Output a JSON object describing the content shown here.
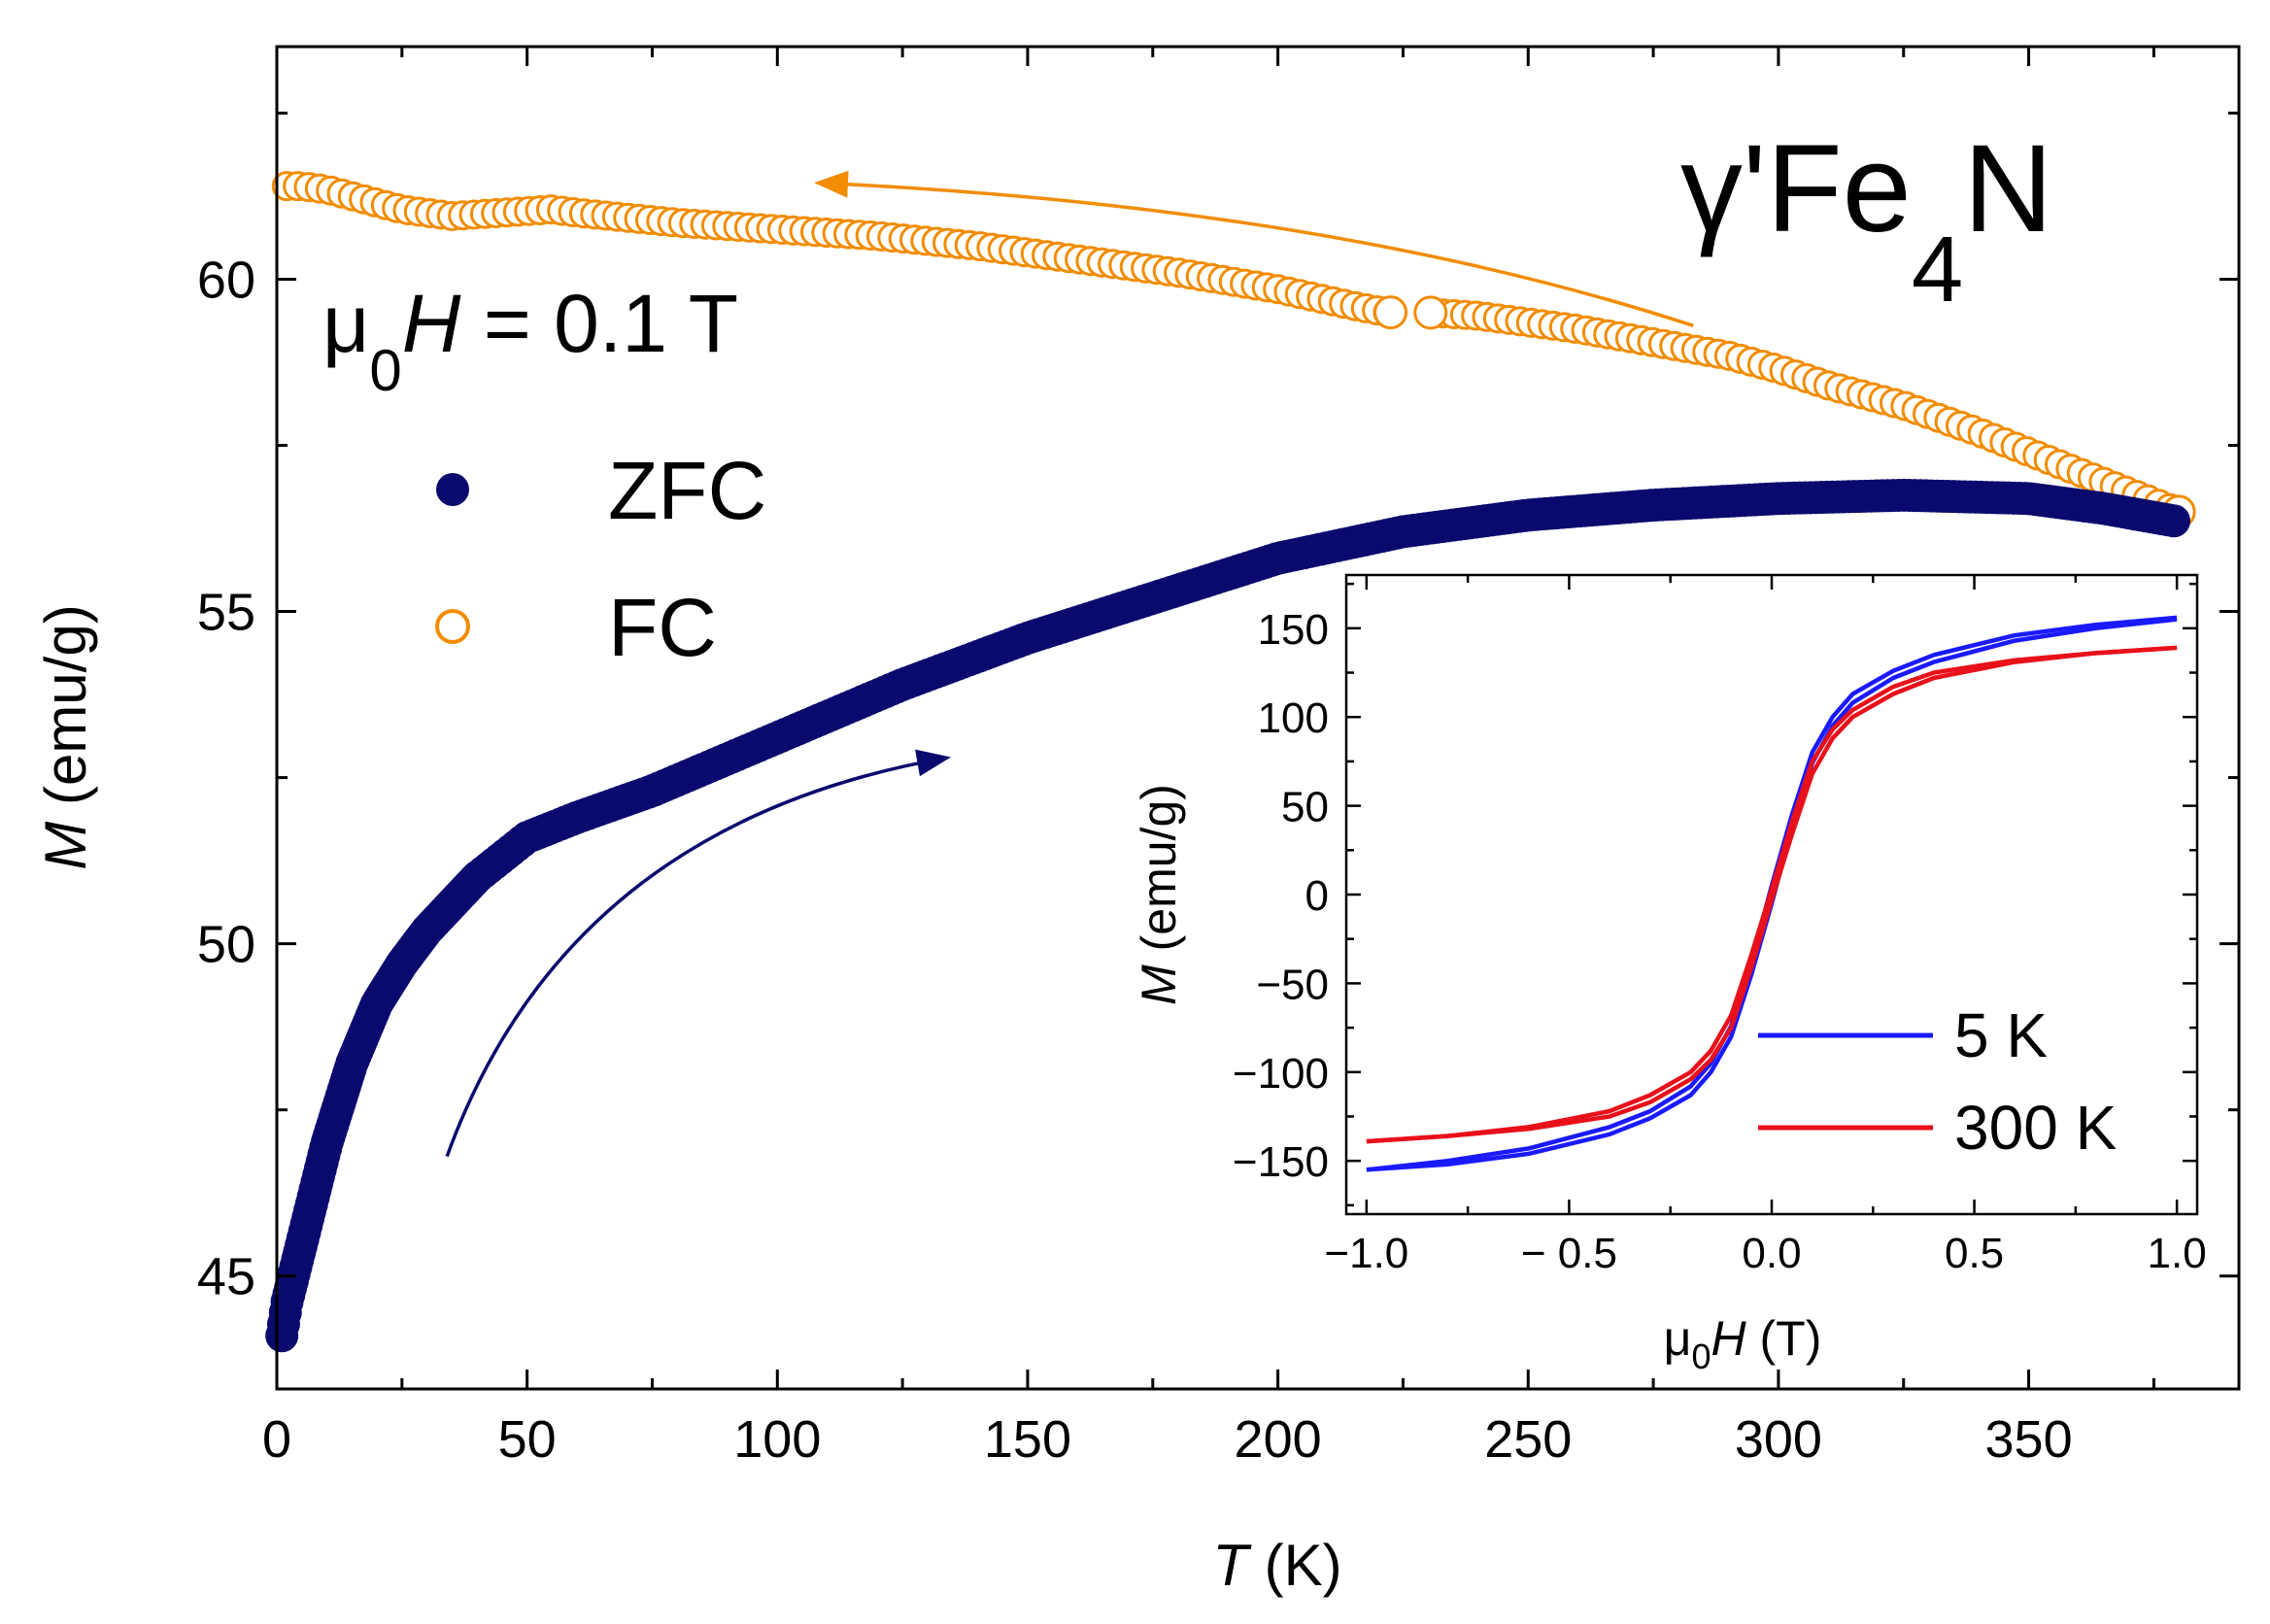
{
  "colors": {
    "zfc": "#0a0a6e",
    "fc": "#f28c00",
    "inset_5k": "#1a1aff",
    "inset_300k": "#e8101a"
  },
  "labels": {
    "title_gamma": "γ'Fe",
    "title_sub": "4",
    "title_n": "N",
    "field_mu": "μ",
    "field_sub": "0",
    "field_h": "H",
    "field_val": " = 0.1 T",
    "ylabel_m": "M",
    "ylabel_unit": " (emu/g)",
    "xlabel_t": "T",
    "xlabel_unit": " (K)",
    "inset_ylabel_m": "M",
    "inset_ylabel_unit": " (emu/g)",
    "inset_xlabel_mu": "μ",
    "inset_xlabel_sub": "0",
    "inset_xlabel_h": "H",
    "inset_xlabel_unit": " (T)"
  },
  "chart_data": [
    {
      "type": "scatter",
      "title": "γ'Fe4N",
      "annotation": "μ0H = 0.1 T",
      "xlabel": "T (K)",
      "ylabel": "M (emu/g)",
      "xlim": [
        0,
        392
      ],
      "ylim": [
        43.3,
        63.5
      ],
      "xticks": [
        "0",
        "50",
        "100",
        "150",
        "200",
        "250",
        "300",
        "350"
      ],
      "yticks": [
        "45",
        "50",
        "55",
        "60"
      ],
      "legend_position": "upper-left",
      "series": [
        {
          "name": "ZFC",
          "marker": "filled-circle",
          "x": [
            1,
            2,
            5,
            10,
            15,
            20,
            25,
            30,
            40,
            50,
            60,
            75,
            100,
            125,
            150,
            175,
            200,
            225,
            250,
            275,
            300,
            325,
            350,
            365,
            380
          ],
          "y": [
            44.1,
            44.6,
            45.5,
            47.0,
            48.2,
            49.1,
            49.7,
            50.2,
            51.0,
            51.6,
            51.9,
            52.3,
            53.1,
            53.9,
            54.6,
            55.2,
            55.8,
            56.2,
            56.45,
            56.6,
            56.7,
            56.75,
            56.7,
            56.55,
            56.35
          ]
        },
        {
          "name": "FC",
          "marker": "open-circle",
          "x": [
            380,
            370,
            360,
            350,
            340,
            325,
            310,
            300,
            290,
            275,
            260,
            250,
            240,
            230,
            222,
            215,
            200,
            180,
            160,
            140,
            120,
            100,
            80,
            60,
            55,
            45,
            35,
            25,
            15,
            10,
            5,
            2
          ],
          "y": [
            56.5,
            56.8,
            57.1,
            57.4,
            57.7,
            58.1,
            58.4,
            58.65,
            58.85,
            59.05,
            59.25,
            59.35,
            59.45,
            59.5,
            59.5,
            59.6,
            59.85,
            60.1,
            60.3,
            60.5,
            60.65,
            60.75,
            60.85,
            61.0,
            61.05,
            61.0,
            60.95,
            61.05,
            61.25,
            61.35,
            61.4,
            61.4
          ]
        }
      ]
    },
    {
      "type": "line",
      "title": "inset",
      "xlabel": "μ0H (T)",
      "ylabel": "M (emu/g)",
      "xlim": [
        -1.05,
        1.05
      ],
      "ylim": [
        -180,
        180
      ],
      "xticks": [
        "−1.0",
        "− 0.5",
        "0.0",
        "0.5",
        "1.0"
      ],
      "yticks": [
        "150",
        "100",
        "50",
        "0",
        "−50",
        "−100",
        "−150"
      ],
      "legend_position": "lower-right",
      "series": [
        {
          "name": "5 K",
          "x": [
            -1.0,
            -0.8,
            -0.6,
            -0.4,
            -0.3,
            -0.2,
            -0.15,
            -0.1,
            -0.05,
            0.0,
            0.05,
            0.1,
            0.15,
            0.2,
            0.3,
            0.4,
            0.6,
            0.8,
            1.0
          ],
          "y_up": [
            -155,
            -150,
            -143,
            -131,
            -122,
            -108,
            -95,
            -74,
            -38,
            5,
            45,
            80,
            100,
            113,
            126,
            135,
            146,
            152,
            156
          ],
          "y_down": [
            -155,
            -152,
            -146,
            -135,
            -126,
            -113,
            -100,
            -80,
            -45,
            -5,
            38,
            74,
            95,
            108,
            122,
            131,
            143,
            150,
            155
          ]
        },
        {
          "name": "300 K",
          "x": [
            -1.0,
            -0.8,
            -0.6,
            -0.4,
            -0.3,
            -0.2,
            -0.15,
            -0.1,
            -0.05,
            0.0,
            0.05,
            0.1,
            0.15,
            0.2,
            0.3,
            0.4,
            0.6,
            0.8,
            1.0
          ],
          "y_up": [
            -139,
            -136,
            -131,
            -122,
            -113,
            -100,
            -88,
            -68,
            -34,
            3,
            41,
            75,
            93,
            104,
            117,
            125,
            132,
            136,
            139
          ],
          "y_down": [
            -139,
            -136,
            -132,
            -125,
            -117,
            -104,
            -93,
            -75,
            -41,
            -3,
            34,
            68,
            88,
            100,
            113,
            122,
            131,
            136,
            139
          ]
        }
      ]
    }
  ]
}
